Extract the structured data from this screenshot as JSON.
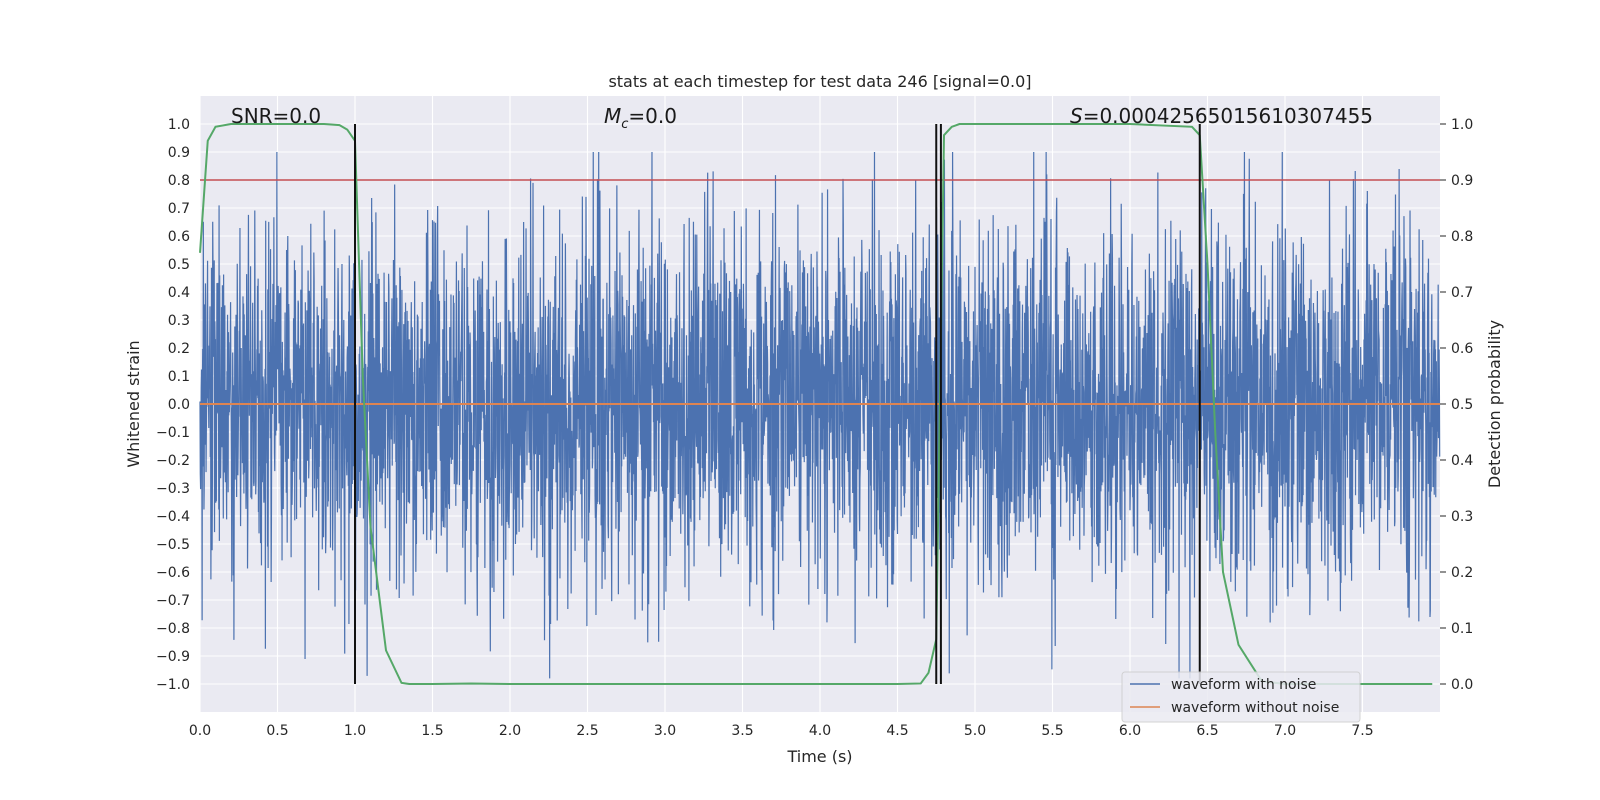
{
  "chart_data": {
    "type": "line",
    "title": "stats at each timestep for test data 246 [signal=0.0]",
    "xlabel": "Time (s)",
    "ylabel": "Whitened strain",
    "y2label": "Detection probability",
    "xlim": [
      0.0,
      8.0
    ],
    "ylim": [
      -1.1,
      1.1
    ],
    "y2lim": [
      -0.05,
      1.05
    ],
    "xticks": [
      0.0,
      0.5,
      1.0,
      1.5,
      2.0,
      2.5,
      3.0,
      3.5,
      4.0,
      4.5,
      5.0,
      5.5,
      6.0,
      6.5,
      7.0,
      7.5
    ],
    "xtick_labels": [
      "0.0",
      "0.5",
      "1.0",
      "1.5",
      "2.0",
      "2.5",
      "3.0",
      "3.5",
      "4.0",
      "4.5",
      "5.0",
      "5.5",
      "6.0",
      "6.5",
      "7.0",
      "7.5"
    ],
    "yticks": [
      1.0,
      0.9,
      0.8,
      0.7,
      0.6,
      0.5,
      0.4,
      0.3,
      0.2,
      0.1,
      0.0,
      -0.1,
      -0.2,
      -0.3,
      -0.4,
      -0.5,
      -0.6,
      -0.7,
      -0.8,
      -0.9,
      -1.0
    ],
    "ytick_labels": [
      "1.0",
      "0.9",
      "0.8",
      "0.7",
      "0.6",
      "0.5",
      "0.4",
      "0.3",
      "0.2",
      "0.1",
      "0.0",
      "−0.1",
      "−0.2",
      "−0.3",
      "−0.4",
      "−0.5",
      "−0.6",
      "−0.7",
      "−0.8",
      "−0.9",
      "−1.0"
    ],
    "y2ticks": [
      1.0,
      0.9,
      0.8,
      0.7,
      0.6,
      0.5,
      0.4,
      0.3,
      0.2,
      0.1,
      0.0
    ],
    "y2tick_labels": [
      "1.0",
      "0.9",
      "0.8",
      "0.7",
      "0.6",
      "0.5",
      "0.4",
      "0.3",
      "0.2",
      "0.1",
      "0.0"
    ],
    "annotations": {
      "snr": "SNR=0.0",
      "mc_symbol": "M",
      "mc_subscript": "c",
      "mc_value": "=0.0",
      "s_symbol": "S",
      "s_value": "=0.00042565015610307455"
    },
    "series": [
      {
        "name": "waveform with noise",
        "color": "#4c72b0",
        "kind": "noise",
        "amplitude_sigma": 0.32,
        "amplitude_max": [
          -0.98,
          0.9
        ],
        "samples": 4096,
        "seed": 246
      },
      {
        "name": "waveform without noise",
        "color": "#dd8452",
        "kind": "constant",
        "y": 0.0
      },
      {
        "name": "detection probability",
        "color": "#55a868",
        "axis": "y2",
        "x": [
          0.0,
          0.05,
          0.1,
          0.2,
          0.5,
          0.8,
          0.9,
          0.95,
          1.0,
          1.05,
          1.1,
          1.2,
          1.3,
          1.35,
          1.5,
          1.75,
          2.0,
          3.0,
          4.0,
          4.5,
          4.65,
          4.7,
          4.75,
          4.8,
          4.85,
          4.9,
          5.0,
          6.0,
          6.4,
          6.45,
          6.5,
          6.55,
          6.6,
          6.7,
          6.85,
          7.0,
          7.5,
          7.95
        ],
        "y": [
          0.77,
          0.97,
          0.995,
          1.0,
          1.0,
          1.0,
          0.998,
          0.99,
          0.97,
          0.55,
          0.28,
          0.06,
          0.002,
          0.0,
          0.0,
          0.001,
          0.0,
          0.0,
          0.0,
          0.0,
          0.001,
          0.02,
          0.08,
          0.98,
          0.995,
          1.0,
          1.0,
          1.0,
          0.995,
          0.98,
          0.75,
          0.45,
          0.2,
          0.07,
          0.005,
          0.0,
          0.0,
          0.0
        ]
      },
      {
        "name": "threshold",
        "color": "#c44e52",
        "axis": "y2",
        "kind": "hline",
        "y": 0.9
      }
    ],
    "vertical_lines": [
      1.0,
      4.75,
      4.78,
      6.45
    ],
    "legend": {
      "position": "lower-right",
      "entries": [
        "waveform with noise",
        "waveform without noise"
      ]
    },
    "grid": true
  }
}
